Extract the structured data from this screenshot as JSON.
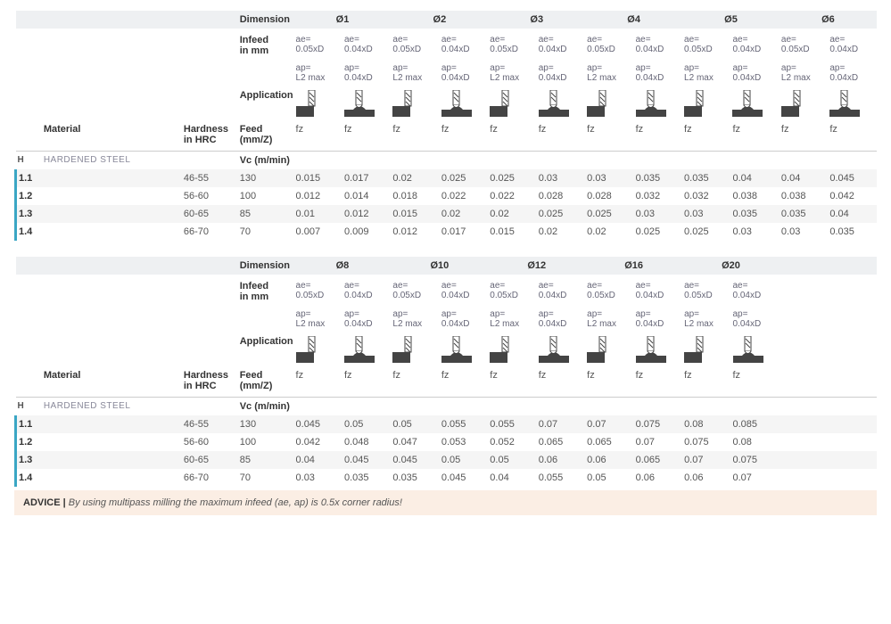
{
  "headers": {
    "dimension": "Dimension",
    "infeed": "Infeed\nin mm",
    "application": "Application",
    "material": "Material",
    "hardness": "Hardness\nin HRC",
    "feed": "Feed (mm/Z)",
    "vc": "Vc (m/min)",
    "ae1": "ae=\n0.05xD",
    "ae2": "ae=\n0.04xD",
    "ap1": "ap=\nL2 max",
    "ap2": "ap=\n0.04xD",
    "fz": "fz",
    "matcode": "H",
    "matname": "HARDENED STEEL"
  },
  "colors": {
    "headerBg": "#eef0f2",
    "stripe": "#f5f5f5",
    "border": "#3aa6c4",
    "adviceBg": "#fbeee4",
    "iconDark": "#444",
    "iconLight": "#bbb"
  },
  "icons": {
    "side": "side-mill-icon",
    "ball": "ball-mill-icon"
  },
  "tables": [
    {
      "diameters": [
        "Ø1",
        "Ø2",
        "Ø3",
        "Ø4",
        "Ø5",
        "Ø6"
      ],
      "nCols": 12,
      "rows": [
        {
          "code": "1.1",
          "hrc": "46-55",
          "vc": "130",
          "vals": [
            "0.015",
            "0.017",
            "0.02",
            "0.025",
            "0.025",
            "0.03",
            "0.03",
            "0.035",
            "0.035",
            "0.04",
            "0.04",
            "0.045"
          ]
        },
        {
          "code": "1.2",
          "hrc": "56-60",
          "vc": "100",
          "vals": [
            "0.012",
            "0.014",
            "0.018",
            "0.022",
            "0.022",
            "0.028",
            "0.028",
            "0.032",
            "0.032",
            "0.038",
            "0.038",
            "0.042"
          ]
        },
        {
          "code": "1.3",
          "hrc": "60-65",
          "vc": "85",
          "vals": [
            "0.01",
            "0.012",
            "0.015",
            "0.02",
            "0.02",
            "0.025",
            "0.025",
            "0.03",
            "0.03",
            "0.035",
            "0.035",
            "0.04"
          ]
        },
        {
          "code": "1.4",
          "hrc": "66-70",
          "vc": "70",
          "vals": [
            "0.007",
            "0.009",
            "0.012",
            "0.017",
            "0.015",
            "0.02",
            "0.02",
            "0.025",
            "0.025",
            "0.03",
            "0.03",
            "0.035"
          ]
        }
      ]
    },
    {
      "diameters": [
        "Ø8",
        "Ø10",
        "Ø12",
        "Ø16",
        "Ø20"
      ],
      "nCols": 10,
      "rows": [
        {
          "code": "1.1",
          "hrc": "46-55",
          "vc": "130",
          "vals": [
            "0.045",
            "0.05",
            "0.05",
            "0.055",
            "0.055",
            "0.07",
            "0.07",
            "0.075",
            "0.08",
            "0.085"
          ]
        },
        {
          "code": "1.2",
          "hrc": "56-60",
          "vc": "100",
          "vals": [
            "0.042",
            "0.048",
            "0.047",
            "0.053",
            "0.052",
            "0.065",
            "0.065",
            "0.07",
            "0.075",
            "0.08"
          ]
        },
        {
          "code": "1.3",
          "hrc": "60-65",
          "vc": "85",
          "vals": [
            "0.04",
            "0.045",
            "0.045",
            "0.05",
            "0.05",
            "0.06",
            "0.06",
            "0.065",
            "0.07",
            "0.075"
          ]
        },
        {
          "code": "1.4",
          "hrc": "66-70",
          "vc": "70",
          "vals": [
            "0.03",
            "0.035",
            "0.035",
            "0.045",
            "0.04",
            "0.055",
            "0.05",
            "0.06",
            "0.06",
            "0.07"
          ]
        }
      ]
    }
  ],
  "advice": {
    "label": "ADVICE | ",
    "text": "By using multipass milling the maximum infeed (ae, ap) is 0.5x corner radius!"
  }
}
